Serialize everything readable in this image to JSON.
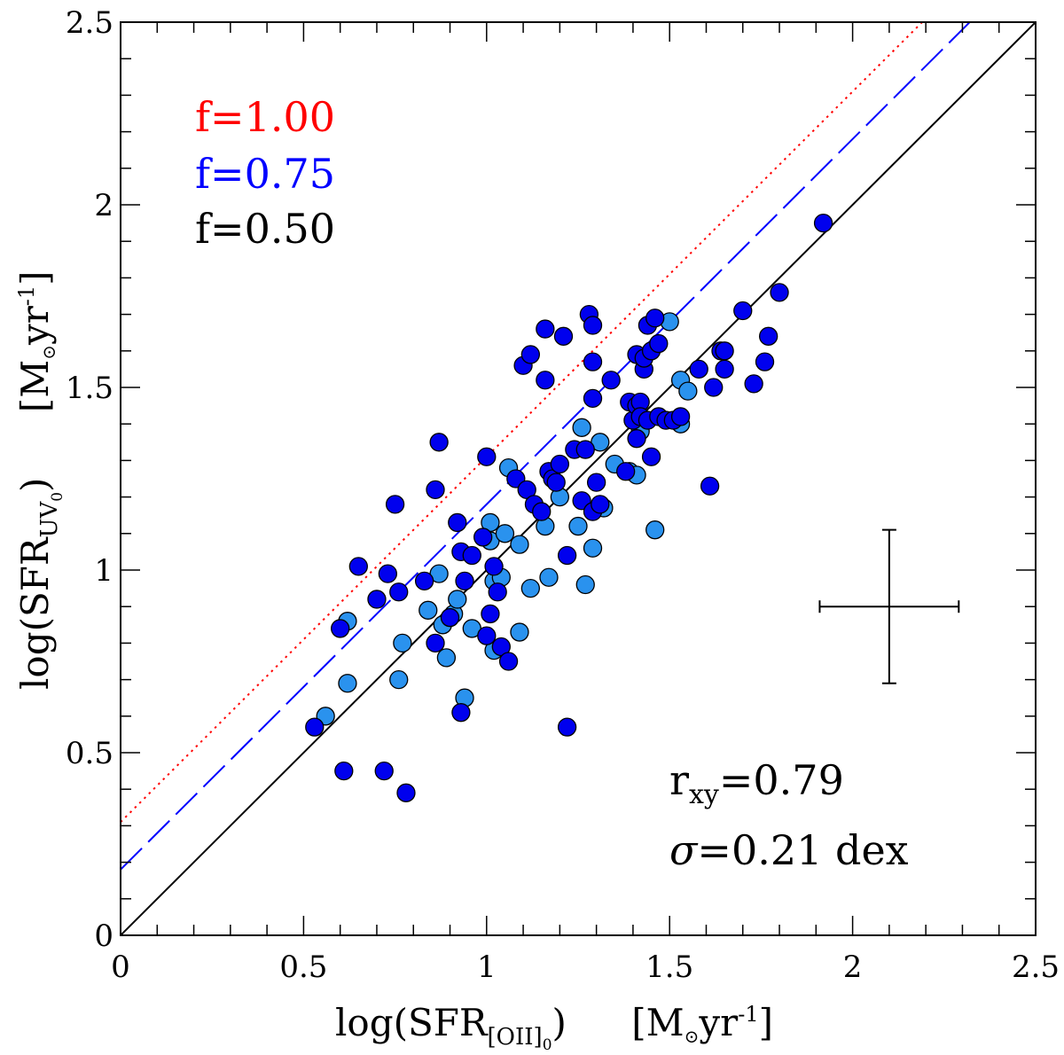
{
  "chart_data": {
    "type": "scatter",
    "xlim": [
      0,
      2.5
    ],
    "ylim": [
      0,
      2.5
    ],
    "x_ticks": [
      "0",
      "0.5",
      "1",
      "1.5",
      "2",
      "2.5"
    ],
    "y_ticks": [
      "0",
      "0.5",
      "1",
      "1.5",
      "2",
      "2.5"
    ],
    "xlabel": {
      "main": "log(SFR",
      "sub": "[OII]",
      "subsub": "0",
      "close": ")",
      "units": "[M",
      "sun": "⊙",
      "yr": "yr",
      "exp": "-1",
      "units_close": "]"
    },
    "ylabel": {
      "main": "log(SFR",
      "sub": "UV",
      "subsub": "0",
      "close": ")",
      "units": "[M",
      "sun": "⊙",
      "yr": "yr",
      "exp": "-1",
      "units_close": "]"
    },
    "lines": [
      {
        "label": "f=1.00",
        "color": "#ff0000",
        "style": "dotted",
        "intercept": 0.31,
        "slope": 1
      },
      {
        "label": "f=0.75",
        "color": "#0000ff",
        "style": "dashed",
        "intercept": 0.18,
        "slope": 1
      },
      {
        "label": "f=0.50",
        "color": "#000000",
        "style": "solid",
        "intercept": 0.0,
        "slope": 1
      }
    ],
    "stats": {
      "r_symbol": "r",
      "r_sub": "xy",
      "r_value": "=0.79",
      "sigma_symbol": "σ",
      "sigma_value": "=0.21 dex"
    },
    "error_bar": {
      "x": 2.1,
      "y": 0.9,
      "xerr": 0.19,
      "yerr": 0.21
    },
    "colors": {
      "dark": "#0000ee",
      "light": "#2a92ee"
    },
    "series": [
      {
        "name": "dark-blue",
        "points": [
          [
            0.53,
            0.57
          ],
          [
            0.6,
            0.84
          ],
          [
            0.61,
            0.45
          ],
          [
            0.65,
            1.01
          ],
          [
            0.7,
            0.92
          ],
          [
            0.72,
            0.45
          ],
          [
            0.73,
            0.99
          ],
          [
            0.75,
            1.18
          ],
          [
            0.76,
            0.94
          ],
          [
            0.78,
            0.39
          ],
          [
            0.83,
            0.97
          ],
          [
            0.86,
            1.22
          ],
          [
            0.86,
            0.8
          ],
          [
            0.87,
            1.35
          ],
          [
            0.9,
            0.87
          ],
          [
            0.92,
            1.13
          ],
          [
            0.93,
            1.05
          ],
          [
            0.93,
            0.61
          ],
          [
            0.94,
            0.97
          ],
          [
            0.96,
            1.04
          ],
          [
            0.99,
            1.09
          ],
          [
            1.0,
            1.31
          ],
          [
            1.0,
            0.82
          ],
          [
            1.01,
            0.88
          ],
          [
            1.02,
            1.01
          ],
          [
            1.03,
            0.94
          ],
          [
            1.04,
            0.79
          ],
          [
            1.06,
            0.75
          ],
          [
            1.08,
            1.25
          ],
          [
            1.1,
            1.56
          ],
          [
            1.11,
            1.22
          ],
          [
            1.12,
            1.59
          ],
          [
            1.13,
            1.18
          ],
          [
            1.15,
            1.16
          ],
          [
            1.16,
            1.66
          ],
          [
            1.16,
            1.52
          ],
          [
            1.17,
            1.27
          ],
          [
            1.18,
            1.25
          ],
          [
            1.19,
            1.24
          ],
          [
            1.2,
            1.29
          ],
          [
            1.21,
            1.64
          ],
          [
            1.22,
            0.57
          ],
          [
            1.22,
            1.04
          ],
          [
            1.24,
            1.33
          ],
          [
            1.26,
            1.19
          ],
          [
            1.27,
            1.33
          ],
          [
            1.28,
            1.7
          ],
          [
            1.29,
            1.67
          ],
          [
            1.29,
            1.57
          ],
          [
            1.29,
            1.47
          ],
          [
            1.29,
            1.16
          ],
          [
            1.3,
            1.24
          ],
          [
            1.31,
            1.18
          ],
          [
            1.34,
            1.52
          ],
          [
            1.38,
            1.27
          ],
          [
            1.39,
            1.46
          ],
          [
            1.4,
            1.41
          ],
          [
            1.41,
            1.45
          ],
          [
            1.41,
            1.36
          ],
          [
            1.41,
            1.59
          ],
          [
            1.42,
            1.46
          ],
          [
            1.42,
            1.42
          ],
          [
            1.43,
            1.55
          ],
          [
            1.43,
            1.58
          ],
          [
            1.44,
            1.41
          ],
          [
            1.44,
            1.67
          ],
          [
            1.45,
            1.31
          ],
          [
            1.45,
            1.6
          ],
          [
            1.46,
            1.69
          ],
          [
            1.47,
            1.62
          ],
          [
            1.47,
            1.42
          ],
          [
            1.49,
            1.41
          ],
          [
            1.51,
            1.41
          ],
          [
            1.53,
            1.42
          ],
          [
            1.58,
            1.55
          ],
          [
            1.61,
            1.23
          ],
          [
            1.62,
            1.5
          ],
          [
            1.64,
            1.6
          ],
          [
            1.65,
            1.55
          ],
          [
            1.7,
            1.71
          ],
          [
            1.73,
            1.51
          ],
          [
            1.76,
            1.57
          ],
          [
            1.77,
            1.64
          ],
          [
            1.8,
            1.76
          ],
          [
            1.92,
            1.95
          ],
          [
            1.65,
            1.6
          ]
        ]
      },
      {
        "name": "light-blue",
        "points": [
          [
            0.56,
            0.6
          ],
          [
            0.62,
            0.86
          ],
          [
            0.62,
            0.69
          ],
          [
            0.76,
            0.7
          ],
          [
            0.77,
            0.8
          ],
          [
            0.84,
            0.89
          ],
          [
            0.87,
            0.99
          ],
          [
            0.88,
            0.85
          ],
          [
            0.89,
            0.76
          ],
          [
            0.9,
            0.87
          ],
          [
            0.91,
            0.88
          ],
          [
            0.92,
            0.92
          ],
          [
            0.94,
            0.65
          ],
          [
            0.96,
            0.84
          ],
          [
            1.01,
            1.13
          ],
          [
            1.01,
            1.08
          ],
          [
            1.02,
            0.78
          ],
          [
            1.02,
            0.97
          ],
          [
            1.04,
            0.98
          ],
          [
            1.05,
            1.1
          ],
          [
            1.06,
            1.28
          ],
          [
            1.09,
            1.07
          ],
          [
            1.09,
            0.83
          ],
          [
            1.12,
            0.95
          ],
          [
            1.16,
            1.12
          ],
          [
            1.17,
            0.98
          ],
          [
            1.2,
            1.2
          ],
          [
            1.25,
            1.12
          ],
          [
            1.26,
            1.39
          ],
          [
            1.27,
            0.96
          ],
          [
            1.29,
            1.06
          ],
          [
            1.31,
            1.35
          ],
          [
            1.32,
            1.17
          ],
          [
            1.35,
            1.29
          ],
          [
            1.39,
            1.27
          ],
          [
            1.41,
            1.26
          ],
          [
            1.42,
            1.38
          ],
          [
            1.46,
            1.11
          ],
          [
            1.5,
            1.68
          ],
          [
            1.53,
            1.52
          ],
          [
            1.55,
            1.49
          ],
          [
            1.53,
            1.4
          ]
        ]
      }
    ]
  }
}
